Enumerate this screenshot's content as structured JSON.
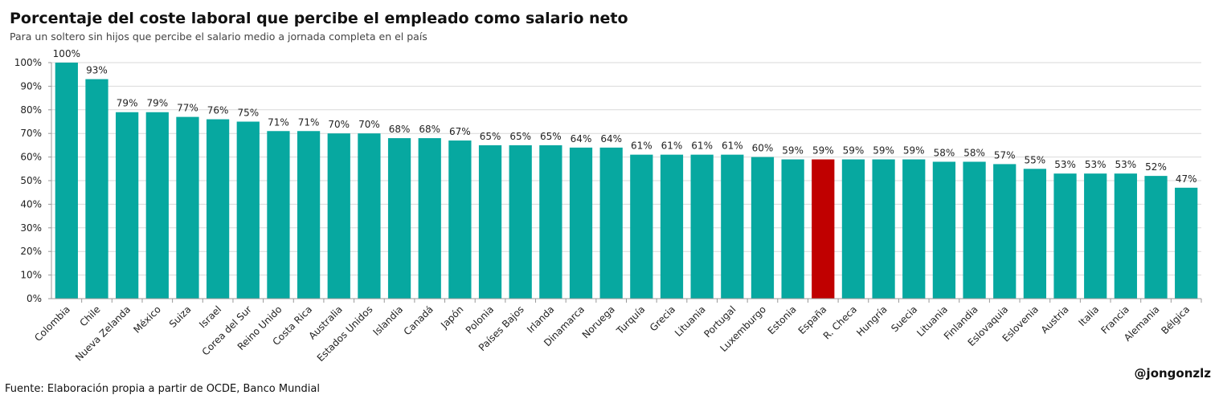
{
  "chart_data": {
    "type": "bar",
    "title": "Porcentaje del coste laboral que percibe el empleado como salario neto",
    "subtitle": "Para un soltero sin hijos que percibe el salario medio a jornada completa en el país",
    "xlabel": "",
    "ylabel": "",
    "ylim": [
      0,
      100
    ],
    "yticks": [
      "0%",
      "10%",
      "20%",
      "30%",
      "40%",
      "50%",
      "60%",
      "70%",
      "80%",
      "90%",
      "100%"
    ],
    "grid": true,
    "legend": "none",
    "categories": [
      "Colombia",
      "Chile",
      "Nueva Zelanda",
      "México",
      "Suiza",
      "Israel",
      "Corea del Sur",
      "Reino Unido",
      "Costa Rica",
      "Australia",
      "Estados Unidos",
      "Islandia",
      "Canadá",
      "Japón",
      "Polonia",
      "Países Bajos",
      "Irlanda",
      "Dinamarca",
      "Noruega",
      "Turquía",
      "Grecia",
      "Lituania",
      "Portugal",
      "Luxemburgo",
      "Estonia",
      "España",
      "R. Checa",
      "Hungría",
      "Suecia",
      "Lituania",
      "Finlandia",
      "Eslovaquia",
      "Eslovenia",
      "Austria",
      "Italia",
      "Francia",
      "Alemania",
      "Bélgica"
    ],
    "values": [
      100,
      93,
      79,
      79,
      77,
      76,
      75,
      71,
      71,
      70,
      70,
      68,
      68,
      67,
      65,
      65,
      65,
      64,
      64,
      61,
      61,
      61,
      61,
      60,
      59,
      59,
      59,
      59,
      59,
      58,
      58,
      57,
      55,
      53,
      53,
      53,
      52,
      47
    ],
    "data_labels": [
      "100%",
      "93%",
      "79%",
      "79%",
      "77%",
      "76%",
      "75%",
      "71%",
      "71%",
      "70%",
      "70%",
      "68%",
      "68%",
      "67%",
      "65%",
      "65%",
      "65%",
      "64%",
      "64%",
      "61%",
      "61%",
      "61%",
      "61%",
      "60%",
      "59%",
      "59%",
      "59%",
      "59%",
      "59%",
      "58%",
      "58%",
      "57%",
      "55%",
      "53%",
      "53%",
      "53%",
      "52%",
      "47%"
    ],
    "highlight": "España",
    "colors": {
      "bar": "#07A8A0",
      "highlight": "#C00000",
      "grid": "#D9D9D9"
    }
  },
  "footer": {
    "source": "Fuente: Elaboración propia a partir de OCDE, Banco Mundial",
    "handle": "@jongonzlz"
  }
}
